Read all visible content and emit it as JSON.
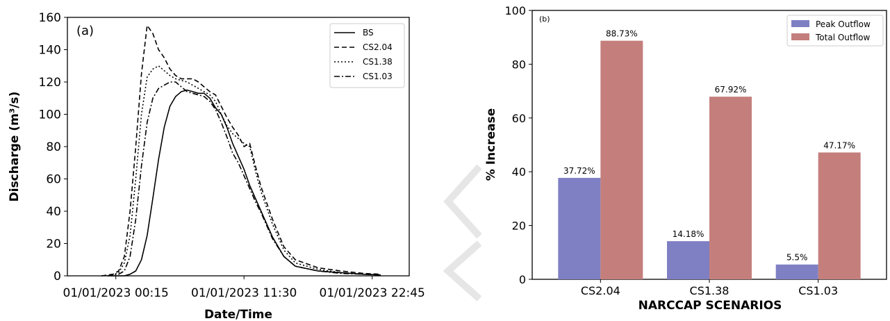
{
  "chart_data": [
    {
      "type": "line",
      "panel_label": "(a)",
      "xlabel": "Date/Time",
      "ylabel": "Discharge (m³/s)",
      "ylim": [
        0,
        160
      ],
      "yticks": [
        0,
        20,
        40,
        60,
        80,
        100,
        120,
        140,
        160
      ],
      "xlim": [
        -4,
        26
      ],
      "xticks": [
        {
          "x": 0.25,
          "label": "01/01/2023 00:15"
        },
        {
          "x": 11.5,
          "label": "01/01/2023 11:30"
        },
        {
          "x": 22.75,
          "label": "01/01/2023 22:45"
        }
      ],
      "legend_position": "top-right",
      "series": [
        {
          "name": "BS",
          "dash": "solid",
          "x": [
            -0.5,
            1,
            1.5,
            2,
            2.5,
            3,
            3.5,
            4,
            4.5,
            5,
            5.5,
            6,
            6.5,
            7,
            7.5,
            8,
            8.5,
            9,
            9.5,
            10,
            10.5,
            11,
            11.5,
            12,
            12.5,
            13,
            14,
            15,
            16,
            18,
            20,
            22,
            23.5
          ],
          "y": [
            0,
            0,
            1,
            3,
            10,
            25,
            48,
            72,
            92,
            105,
            111,
            114,
            115,
            114,
            113,
            113,
            110,
            104,
            100,
            92,
            82,
            74,
            66,
            56,
            48,
            40,
            24,
            12,
            6,
            3,
            2,
            1,
            0.5
          ]
        },
        {
          "name": "CS2.04",
          "dash": "dash",
          "x": [
            -1,
            0,
            0.5,
            1,
            1.5,
            2,
            2.5,
            3,
            3.5,
            4,
            4.5,
            5,
            5.5,
            6,
            6.5,
            7,
            7.5,
            8,
            8.5,
            9,
            9.5,
            10,
            10.5,
            11,
            11.5,
            12,
            12.5,
            13,
            14,
            15,
            16,
            18,
            20,
            22,
            23.5
          ],
          "y": [
            0,
            1,
            3,
            12,
            40,
            80,
            125,
            155,
            150,
            140,
            135,
            128,
            124,
            122,
            122,
            122,
            120,
            117,
            114,
            112,
            105,
            98,
            92,
            87,
            80,
            82,
            68,
            55,
            35,
            18,
            10,
            5,
            3,
            1.5,
            1
          ]
        },
        {
          "name": "CS1.38",
          "dash": "dot",
          "x": [
            -1,
            0,
            0.5,
            1,
            1.5,
            2,
            2.5,
            3,
            3.5,
            4,
            4.5,
            5,
            5.5,
            6,
            6.5,
            7,
            7.5,
            8,
            8.5,
            9,
            9.5,
            10,
            10.5,
            11,
            11.5,
            12,
            12.5,
            13,
            14,
            15,
            16,
            18,
            20,
            22,
            23.5
          ],
          "y": [
            0,
            0.5,
            2,
            8,
            25,
            60,
            100,
            123,
            128,
            130,
            127,
            124,
            122,
            121,
            120,
            118,
            116,
            114,
            112,
            108,
            100,
            93,
            88,
            85,
            82,
            80,
            65,
            52,
            32,
            16,
            8,
            4,
            2,
            1,
            0.5
          ]
        },
        {
          "name": "CS1.03",
          "dash": "dashdot",
          "x": [
            -0.5,
            0.5,
            1,
            1.5,
            2,
            2.5,
            3,
            3.5,
            4,
            4.5,
            5,
            5.5,
            6,
            6.5,
            7,
            7.5,
            8,
            8.5,
            9,
            9.5,
            10,
            10.5,
            11,
            11.5,
            12,
            12.5,
            13,
            14,
            15,
            16,
            18,
            20,
            22,
            23.5
          ],
          "y": [
            0,
            1,
            3,
            12,
            35,
            68,
            95,
            110,
            116,
            118,
            120,
            120,
            117,
            114,
            113,
            112,
            111,
            108,
            103,
            95,
            86,
            76,
            70,
            62,
            54,
            46,
            39,
            23,
            12,
            6,
            3,
            1.5,
            1,
            0.5
          ]
        }
      ]
    },
    {
      "type": "bar",
      "panel_label": "(b)",
      "xlabel": "NARCCAP SCENARIOS",
      "ylabel": "% Increase",
      "ylim": [
        0,
        100
      ],
      "yticks": [
        0,
        20,
        40,
        60,
        80,
        100
      ],
      "categories": [
        "CS2.04",
        "CS1.38",
        "CS1.03"
      ],
      "legend_position": "top-right",
      "series": [
        {
          "name": "Peak Outflow",
          "color": "#7f7fc4",
          "values": [
            37.72,
            14.18,
            5.5
          ],
          "labels": [
            "37.72%",
            "14.18%",
            "5.5%"
          ]
        },
        {
          "name": "Total Outflow",
          "color": "#c47f7c",
          "values": [
            88.73,
            67.92,
            47.17
          ],
          "labels": [
            "88.73%",
            "67.92%",
            "47.17%"
          ]
        }
      ]
    }
  ]
}
